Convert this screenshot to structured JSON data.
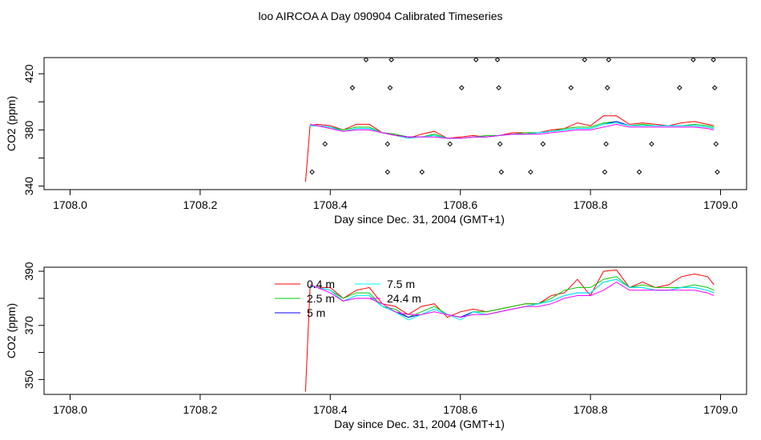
{
  "title": "loo AIRCOA A  Day 090904  Calibrated Timeseries",
  "chart_data": [
    {
      "type": "scatter",
      "xlabel": "Day since Dec. 31, 2004 (GMT+1)",
      "ylabel": "CO2 (ppm)",
      "xlim": [
        1707.96,
        1709.04
      ],
      "ylim": [
        337.5,
        431.5
      ],
      "xticks": [
        1708.0,
        1708.2,
        1708.4,
        1708.6,
        1708.8,
        1709.0
      ],
      "xtick_labels": [
        "1708.0",
        "1708.2",
        "1708.4",
        "1708.6",
        "1708.8",
        "1709.0"
      ],
      "yticks": [
        340,
        380,
        420
      ],
      "ytick_labels": [
        "340",
        "380",
        "420"
      ],
      "yminor": [
        360,
        400
      ],
      "grid": false,
      "points": [
        [
          1708.372,
          350
        ],
        [
          1708.392,
          370
        ],
        [
          1708.434,
          410
        ],
        [
          1708.455,
          430
        ],
        [
          1708.488,
          350
        ],
        [
          1708.488,
          370
        ],
        [
          1708.492,
          410
        ],
        [
          1708.494,
          430
        ],
        [
          1708.541,
          350
        ],
        [
          1708.584,
          370
        ],
        [
          1708.602,
          410
        ],
        [
          1708.624,
          430
        ],
        [
          1708.657,
          430
        ],
        [
          1708.659,
          410
        ],
        [
          1708.661,
          370
        ],
        [
          1708.663,
          350
        ],
        [
          1708.708,
          350
        ],
        [
          1708.727,
          370
        ],
        [
          1708.77,
          410
        ],
        [
          1708.791,
          430
        ],
        [
          1708.822,
          350
        ],
        [
          1708.824,
          370
        ],
        [
          1708.826,
          410
        ],
        [
          1708.828,
          430
        ],
        [
          1708.875,
          350
        ],
        [
          1708.894,
          370
        ],
        [
          1708.937,
          410
        ],
        [
          1708.958,
          430
        ],
        [
          1708.989,
          430
        ],
        [
          1708.991,
          410
        ],
        [
          1708.993,
          370
        ],
        [
          1708.995,
          350
        ]
      ],
      "series": [
        {
          "color": "#ff0000",
          "x": [
            1708.362,
            1708.369,
            1708.38,
            1708.4,
            1708.42,
            1708.44,
            1708.46,
            1708.48,
            1708.5,
            1708.52,
            1708.54,
            1708.56,
            1708.58,
            1708.6,
            1708.62,
            1708.64,
            1708.66,
            1708.68,
            1708.7,
            1708.72,
            1708.74,
            1708.76,
            1708.78,
            1708.8,
            1708.82,
            1708.84,
            1708.86,
            1708.88,
            1708.9,
            1708.92,
            1708.94,
            1708.96,
            1708.98,
            1708.99
          ],
          "values": [
            343,
            383,
            384,
            383,
            380,
            384,
            384,
            378,
            377,
            374,
            377,
            379,
            374,
            375,
            376,
            375,
            376,
            378,
            378,
            378,
            380,
            381,
            385,
            383,
            390,
            390,
            384,
            385,
            384,
            383,
            385,
            386,
            384,
            383
          ]
        },
        {
          "color": "#00cc00",
          "x": [
            1708.369,
            1708.38,
            1708.4,
            1708.42,
            1708.44,
            1708.46,
            1708.48,
            1708.5,
            1708.52,
            1708.54,
            1708.56,
            1708.58,
            1708.6,
            1708.62,
            1708.64,
            1708.66,
            1708.68,
            1708.7,
            1708.72,
            1708.74,
            1708.76,
            1708.78,
            1708.8,
            1708.82,
            1708.84,
            1708.86,
            1708.88,
            1708.9,
            1708.92,
            1708.94,
            1708.96,
            1708.98,
            1708.99
          ],
          "values": [
            383,
            383,
            382,
            380,
            382,
            382,
            378,
            377,
            375,
            375,
            377,
            374,
            374,
            375,
            376,
            376,
            377,
            378,
            378,
            379,
            381,
            382,
            382,
            385,
            386,
            383,
            384,
            383,
            383,
            383,
            384,
            383,
            382
          ]
        },
        {
          "color": "#0000ff",
          "x": [
            1708.369,
            1708.38,
            1708.4,
            1708.42,
            1708.44,
            1708.46,
            1708.48,
            1708.5,
            1708.52,
            1708.54,
            1708.56,
            1708.58,
            1708.6,
            1708.62,
            1708.64,
            1708.66,
            1708.68,
            1708.7,
            1708.72,
            1708.74,
            1708.76,
            1708.78,
            1708.8,
            1708.82,
            1708.84,
            1708.86,
            1708.88,
            1708.9,
            1708.92,
            1708.94,
            1708.96,
            1708.98,
            1708.99
          ],
          "values": [
            383,
            383,
            382,
            379,
            381,
            381,
            378,
            376,
            375,
            375,
            376,
            374,
            374,
            375,
            375,
            376,
            377,
            377,
            378,
            379,
            380,
            381,
            381,
            384,
            386,
            383,
            383,
            383,
            383,
            383,
            383,
            382,
            381
          ]
        },
        {
          "color": "#00ffff",
          "x": [
            1708.369,
            1708.38,
            1708.4,
            1708.42,
            1708.44,
            1708.46,
            1708.48,
            1708.5,
            1708.52,
            1708.54,
            1708.56,
            1708.58,
            1708.6,
            1708.62,
            1708.64,
            1708.66,
            1708.68,
            1708.7,
            1708.72,
            1708.74,
            1708.76,
            1708.78,
            1708.8,
            1708.82,
            1708.84,
            1708.86,
            1708.88,
            1708.9,
            1708.92,
            1708.94,
            1708.96,
            1708.98,
            1708.99
          ],
          "values": [
            383,
            383,
            382,
            379,
            381,
            381,
            378,
            376,
            374,
            375,
            376,
            374,
            374,
            375,
            375,
            376,
            377,
            377,
            378,
            379,
            380,
            381,
            381,
            384,
            385,
            383,
            383,
            383,
            383,
            383,
            383,
            382,
            381
          ]
        },
        {
          "color": "#ff00ff",
          "x": [
            1708.369,
            1708.38,
            1708.4,
            1708.42,
            1708.44,
            1708.46,
            1708.48,
            1708.5,
            1708.52,
            1708.54,
            1708.56,
            1708.58,
            1708.6,
            1708.62,
            1708.64,
            1708.66,
            1708.68,
            1708.7,
            1708.72,
            1708.74,
            1708.76,
            1708.78,
            1708.8,
            1708.82,
            1708.84,
            1708.86,
            1708.88,
            1708.9,
            1708.92,
            1708.94,
            1708.96,
            1708.98,
            1708.99
          ],
          "values": [
            384,
            383,
            381,
            379,
            380,
            380,
            378,
            376,
            375,
            375,
            375,
            374,
            374,
            375,
            375,
            376,
            377,
            377,
            377,
            378,
            379,
            380,
            380,
            382,
            384,
            382,
            382,
            382,
            382,
            382,
            382,
            381,
            380
          ]
        }
      ]
    },
    {
      "type": "line",
      "xlabel": "Day since Dec. 31, 2004 (GMT+1)",
      "ylabel": "CO2 (ppm)",
      "xlim": [
        1707.96,
        1709.04
      ],
      "ylim": [
        344.5,
        391.5
      ],
      "xticks": [
        1708.0,
        1708.2,
        1708.4,
        1708.6,
        1708.8,
        1709.0
      ],
      "xtick_labels": [
        "1708.0",
        "1708.2",
        "1708.4",
        "1708.6",
        "1708.8",
        "1709.0"
      ],
      "yticks": [
        350,
        370,
        390
      ],
      "ytick_labels": [
        "350",
        "370",
        "390"
      ],
      "yminor": [
        360,
        380
      ],
      "grid": false,
      "legend_position": "top-center",
      "series": [
        {
          "name": "0.4 m",
          "color": "#ff0000",
          "x": [
            1708.362,
            1708.369,
            1708.38,
            1708.4,
            1708.42,
            1708.44,
            1708.46,
            1708.48,
            1708.5,
            1708.52,
            1708.54,
            1708.56,
            1708.58,
            1708.6,
            1708.62,
            1708.64,
            1708.66,
            1708.68,
            1708.7,
            1708.72,
            1708.74,
            1708.76,
            1708.78,
            1708.8,
            1708.82,
            1708.84,
            1708.86,
            1708.88,
            1708.9,
            1708.92,
            1708.94,
            1708.96,
            1708.98,
            1708.99
          ],
          "values": [
            345.5,
            384.5,
            384,
            384,
            380,
            383,
            384,
            378,
            377,
            374,
            377,
            378,
            373,
            375,
            376,
            375,
            376,
            377,
            378,
            378,
            381,
            382,
            387,
            381,
            390,
            390.5,
            384,
            386,
            384,
            385,
            388,
            389,
            388,
            385
          ]
        },
        {
          "name": "2.5 m",
          "color": "#00cc00",
          "x": [
            1708.369,
            1708.38,
            1708.4,
            1708.42,
            1708.44,
            1708.46,
            1708.48,
            1708.5,
            1708.52,
            1708.54,
            1708.56,
            1708.58,
            1708.6,
            1708.62,
            1708.64,
            1708.66,
            1708.68,
            1708.7,
            1708.72,
            1708.74,
            1708.76,
            1708.78,
            1708.8,
            1708.82,
            1708.84,
            1708.86,
            1708.88,
            1708.9,
            1708.92,
            1708.94,
            1708.96,
            1708.98,
            1708.99
          ],
          "values": [
            384.5,
            384,
            383,
            380,
            382,
            382,
            377,
            376,
            373,
            375,
            377,
            374,
            373,
            375,
            375,
            376,
            377,
            378,
            378,
            380,
            383,
            384,
            384,
            387,
            388,
            384,
            385,
            384,
            384,
            384,
            385,
            384,
            383
          ]
        },
        {
          "name": "5 m",
          "color": "#0000ff",
          "x": [
            1708.369,
            1708.38,
            1708.4,
            1708.42,
            1708.44,
            1708.46,
            1708.48,
            1708.5,
            1708.52,
            1708.54,
            1708.56,
            1708.58,
            1708.6,
            1708.62,
            1708.64,
            1708.66,
            1708.68,
            1708.7,
            1708.72,
            1708.74,
            1708.76,
            1708.78,
            1708.8,
            1708.82,
            1708.84,
            1708.86,
            1708.88,
            1708.9,
            1708.92,
            1708.94,
            1708.96,
            1708.98,
            1708.99
          ],
          "values": [
            384.5,
            384,
            383,
            379,
            381,
            381,
            377,
            375,
            373,
            374,
            376,
            374,
            373,
            375,
            374,
            375,
            376,
            377,
            378,
            379,
            381,
            382,
            382,
            386,
            387,
            384,
            384,
            383,
            383,
            384,
            384,
            383,
            382
          ]
        },
        {
          "name": "7.5 m",
          "color": "#00ffff",
          "x": [
            1708.369,
            1708.38,
            1708.4,
            1708.42,
            1708.44,
            1708.46,
            1708.48,
            1708.5,
            1708.52,
            1708.54,
            1708.56,
            1708.58,
            1708.6,
            1708.62,
            1708.64,
            1708.66,
            1708.68,
            1708.7,
            1708.72,
            1708.74,
            1708.76,
            1708.78,
            1708.8,
            1708.82,
            1708.84,
            1708.86,
            1708.88,
            1708.9,
            1708.92,
            1708.94,
            1708.96,
            1708.98,
            1708.99
          ],
          "values": [
            384.5,
            384,
            383,
            379,
            381,
            381,
            377,
            375,
            372,
            374,
            376,
            374,
            372,
            375,
            374,
            375,
            376,
            377,
            378,
            379,
            381,
            382,
            382,
            386,
            387,
            384,
            384,
            383,
            383,
            384,
            384,
            383,
            382
          ]
        },
        {
          "name": "24.4 m",
          "color": "#ff00ff",
          "x": [
            1708.369,
            1708.38,
            1708.4,
            1708.42,
            1708.44,
            1708.46,
            1708.48,
            1708.5,
            1708.52,
            1708.54,
            1708.56,
            1708.58,
            1708.6,
            1708.62,
            1708.64,
            1708.66,
            1708.68,
            1708.7,
            1708.72,
            1708.74,
            1708.76,
            1708.78,
            1708.8,
            1708.82,
            1708.84,
            1708.86,
            1708.88,
            1708.9,
            1708.92,
            1708.94,
            1708.96,
            1708.98,
            1708.99
          ],
          "values": [
            385,
            384,
            382,
            379,
            380,
            380,
            378,
            375,
            374,
            374,
            375,
            374,
            373,
            374,
            374,
            375,
            376,
            377,
            377,
            378,
            380,
            381,
            381,
            383,
            386,
            383,
            383,
            383,
            383,
            383,
            383,
            382,
            381
          ]
        }
      ]
    }
  ]
}
